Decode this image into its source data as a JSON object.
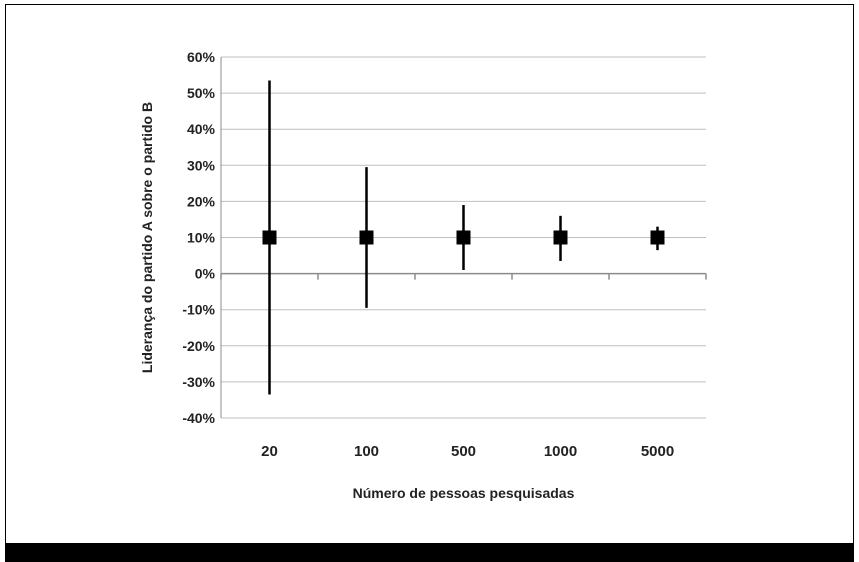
{
  "chart_data": {
    "type": "scatter",
    "title": "",
    "xlabel": "Número de pessoas pesquisadas",
    "ylabel": "Liderança do partido A sobre o partido B",
    "categories": [
      "20",
      "100",
      "500",
      "1000",
      "5000"
    ],
    "y_ticks": [
      "60%",
      "50%",
      "40%",
      "30%",
      "20%",
      "10%",
      "0%",
      "-10%",
      "-20%",
      "-30%",
      "-40%"
    ],
    "ylim": [
      -40,
      60
    ],
    "grid": true,
    "legend": "none",
    "series": [
      {
        "values": [
          10,
          10,
          10,
          10,
          10
        ],
        "error_low": [
          -33.5,
          -9.5,
          1,
          3.5,
          6.5
        ],
        "error_high": [
          53.5,
          29.5,
          19,
          16,
          13
        ]
      }
    ],
    "colors": {
      "marker": "#000000",
      "grid": "#bfbfbf",
      "axis": "#8c8c8c"
    }
  }
}
